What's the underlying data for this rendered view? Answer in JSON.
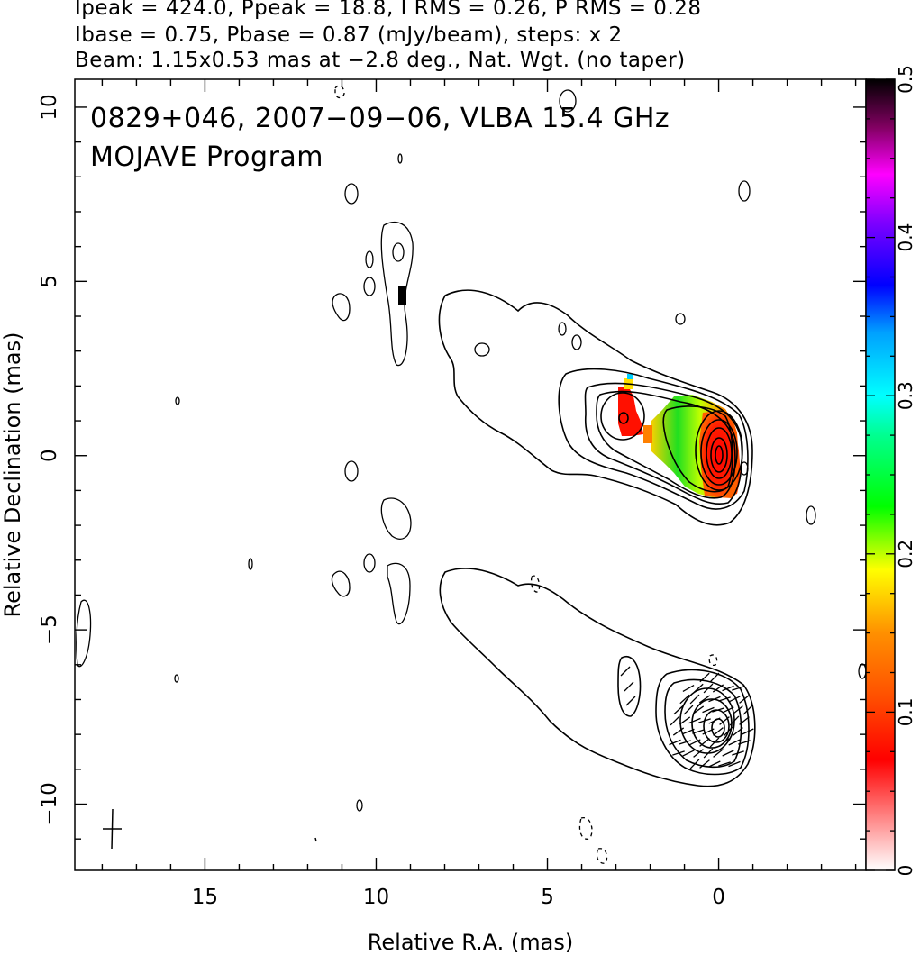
{
  "header": {
    "line1": "Ipeak = 424.0, Ppeak = 18.8, I RMS = 0.26, P RMS = 0.28",
    "line2": "Ibase = 0.75, Pbase = 0.87 (mJy/beam), steps: x 2",
    "line3": "Beam: 1.15x0.53 mas at −2.8 deg., Nat. Wgt. (no taper)"
  },
  "annotations": {
    "source_line": "0829+046, 2007−09−06, VLBA 15.4 GHz",
    "program_line": "MOJAVE Program"
  },
  "chart_data": {
    "type": "heatmap",
    "xlabel": "Relative R.A. (mas)",
    "ylabel": "Relative Declination (mas)",
    "xlim": [
      18.8,
      -4.3
    ],
    "ylim": [
      -11.9,
      10.8
    ],
    "x_ticks": [
      15,
      10,
      5,
      0
    ],
    "x_tick_labels": [
      "15",
      "10",
      "5",
      "0"
    ],
    "y_ticks": [
      10,
      5,
      0,
      -5,
      -10
    ],
    "y_tick_labels": [
      "10",
      "5",
      "0",
      "−5",
      "−10"
    ],
    "colorbar": {
      "min": 0,
      "max": 0.5,
      "ticks": [
        0,
        0.1,
        0.2,
        0.3,
        0.4,
        0.5
      ],
      "tick_labels": [
        "0",
        "0.1",
        "0.2",
        "0.3",
        "0.4",
        "0.5"
      ],
      "colormap": [
        "#ffffff",
        "#ff0000",
        "#ff8000",
        "#ffff00",
        "#00ff00",
        "#00ffff",
        "#0000ff",
        "#ff00ff",
        "#000000"
      ]
    },
    "core_position": [
      0,
      0
    ],
    "beam": {
      "major_mas": 1.15,
      "minor_mas": 0.53,
      "pa_deg": -2.8,
      "center": [
        17.4,
        -10.8
      ]
    }
  },
  "colors": {
    "background": "#ffffff",
    "axes": "#000000",
    "red": "#ff0000",
    "orange": "#ff8000",
    "yellow": "#ffff00",
    "green": "#00d000"
  }
}
